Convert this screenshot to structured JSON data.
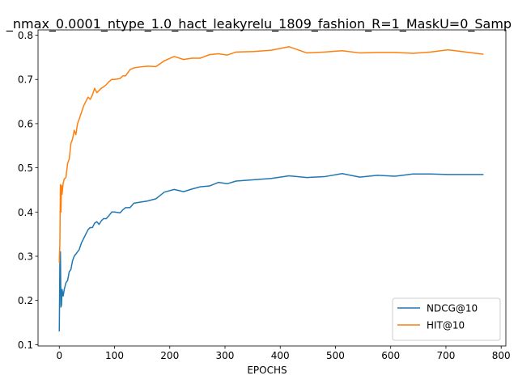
{
  "chart_data": {
    "type": "line",
    "title": "_nmax_0.0001_ntype_1.0_hact_leakyrelu_1809_fashion_R=1_MaskU=0_Samp",
    "xlabel": "EPOCHS",
    "ylabel": "",
    "xlim": [
      -38.5,
      808.5
    ],
    "ylim": [
      0.097,
      0.812
    ],
    "xticks": [
      0,
      100,
      200,
      300,
      400,
      500,
      600,
      700,
      800
    ],
    "yticks": [
      0.1,
      0.2,
      0.3,
      0.4,
      0.5,
      0.6,
      0.7,
      0.8
    ],
    "grid": false,
    "legend_position": "lower-right",
    "series": [
      {
        "name": "NDCG@10",
        "color": "#1f77b4",
        "x": [
          0,
          1,
          2,
          3,
          4,
          5,
          7,
          9,
          12,
          15,
          18,
          21,
          24,
          27,
          30,
          33,
          36,
          40,
          44,
          48,
          52,
          56,
          60,
          64,
          68,
          72,
          76,
          80,
          85,
          90,
          95,
          100,
          110,
          115,
          120,
          128,
          135,
          145,
          160,
          175,
          190,
          208,
          225,
          240,
          255,
          272,
          288,
          304,
          320,
          352,
          384,
          416,
          448,
          480,
          512,
          544,
          576,
          608,
          640,
          672,
          704,
          736,
          768
        ],
        "y": [
          0.13,
          0.285,
          0.31,
          0.185,
          0.19,
          0.225,
          0.21,
          0.225,
          0.24,
          0.245,
          0.265,
          0.27,
          0.29,
          0.3,
          0.305,
          0.31,
          0.315,
          0.33,
          0.34,
          0.35,
          0.36,
          0.365,
          0.365,
          0.375,
          0.378,
          0.372,
          0.38,
          0.385,
          0.385,
          0.392,
          0.4,
          0.4,
          0.398,
          0.405,
          0.41,
          0.41,
          0.42,
          0.422,
          0.425,
          0.43,
          0.445,
          0.451,
          0.446,
          0.452,
          0.457,
          0.459,
          0.467,
          0.464,
          0.47,
          0.473,
          0.476,
          0.482,
          0.478,
          0.48,
          0.487,
          0.479,
          0.483,
          0.481,
          0.486,
          0.486,
          0.485,
          0.485,
          0.485
        ]
      },
      {
        "name": "HIT@10",
        "color": "#ff7f0e",
        "x": [
          0,
          1,
          2,
          3,
          4,
          5,
          7,
          9,
          12,
          15,
          18,
          21,
          24,
          27,
          30,
          33,
          36,
          40,
          44,
          48,
          52,
          56,
          60,
          64,
          68,
          72,
          76,
          80,
          85,
          90,
          95,
          100,
          110,
          115,
          120,
          128,
          135,
          145,
          160,
          175,
          190,
          208,
          225,
          240,
          255,
          272,
          288,
          304,
          320,
          352,
          384,
          416,
          448,
          480,
          512,
          544,
          576,
          608,
          640,
          672,
          704,
          736,
          768
        ],
        "y": [
          0.285,
          0.33,
          0.462,
          0.4,
          0.46,
          0.44,
          0.465,
          0.475,
          0.478,
          0.51,
          0.52,
          0.555,
          0.565,
          0.585,
          0.575,
          0.6,
          0.61,
          0.625,
          0.64,
          0.65,
          0.66,
          0.655,
          0.665,
          0.68,
          0.67,
          0.675,
          0.68,
          0.683,
          0.688,
          0.695,
          0.7,
          0.7,
          0.702,
          0.708,
          0.708,
          0.722,
          0.726,
          0.728,
          0.73,
          0.729,
          0.742,
          0.752,
          0.745,
          0.748,
          0.748,
          0.756,
          0.758,
          0.755,
          0.762,
          0.763,
          0.766,
          0.774,
          0.76,
          0.762,
          0.765,
          0.76,
          0.761,
          0.761,
          0.759,
          0.762,
          0.767,
          0.762,
          0.757
        ]
      }
    ]
  }
}
